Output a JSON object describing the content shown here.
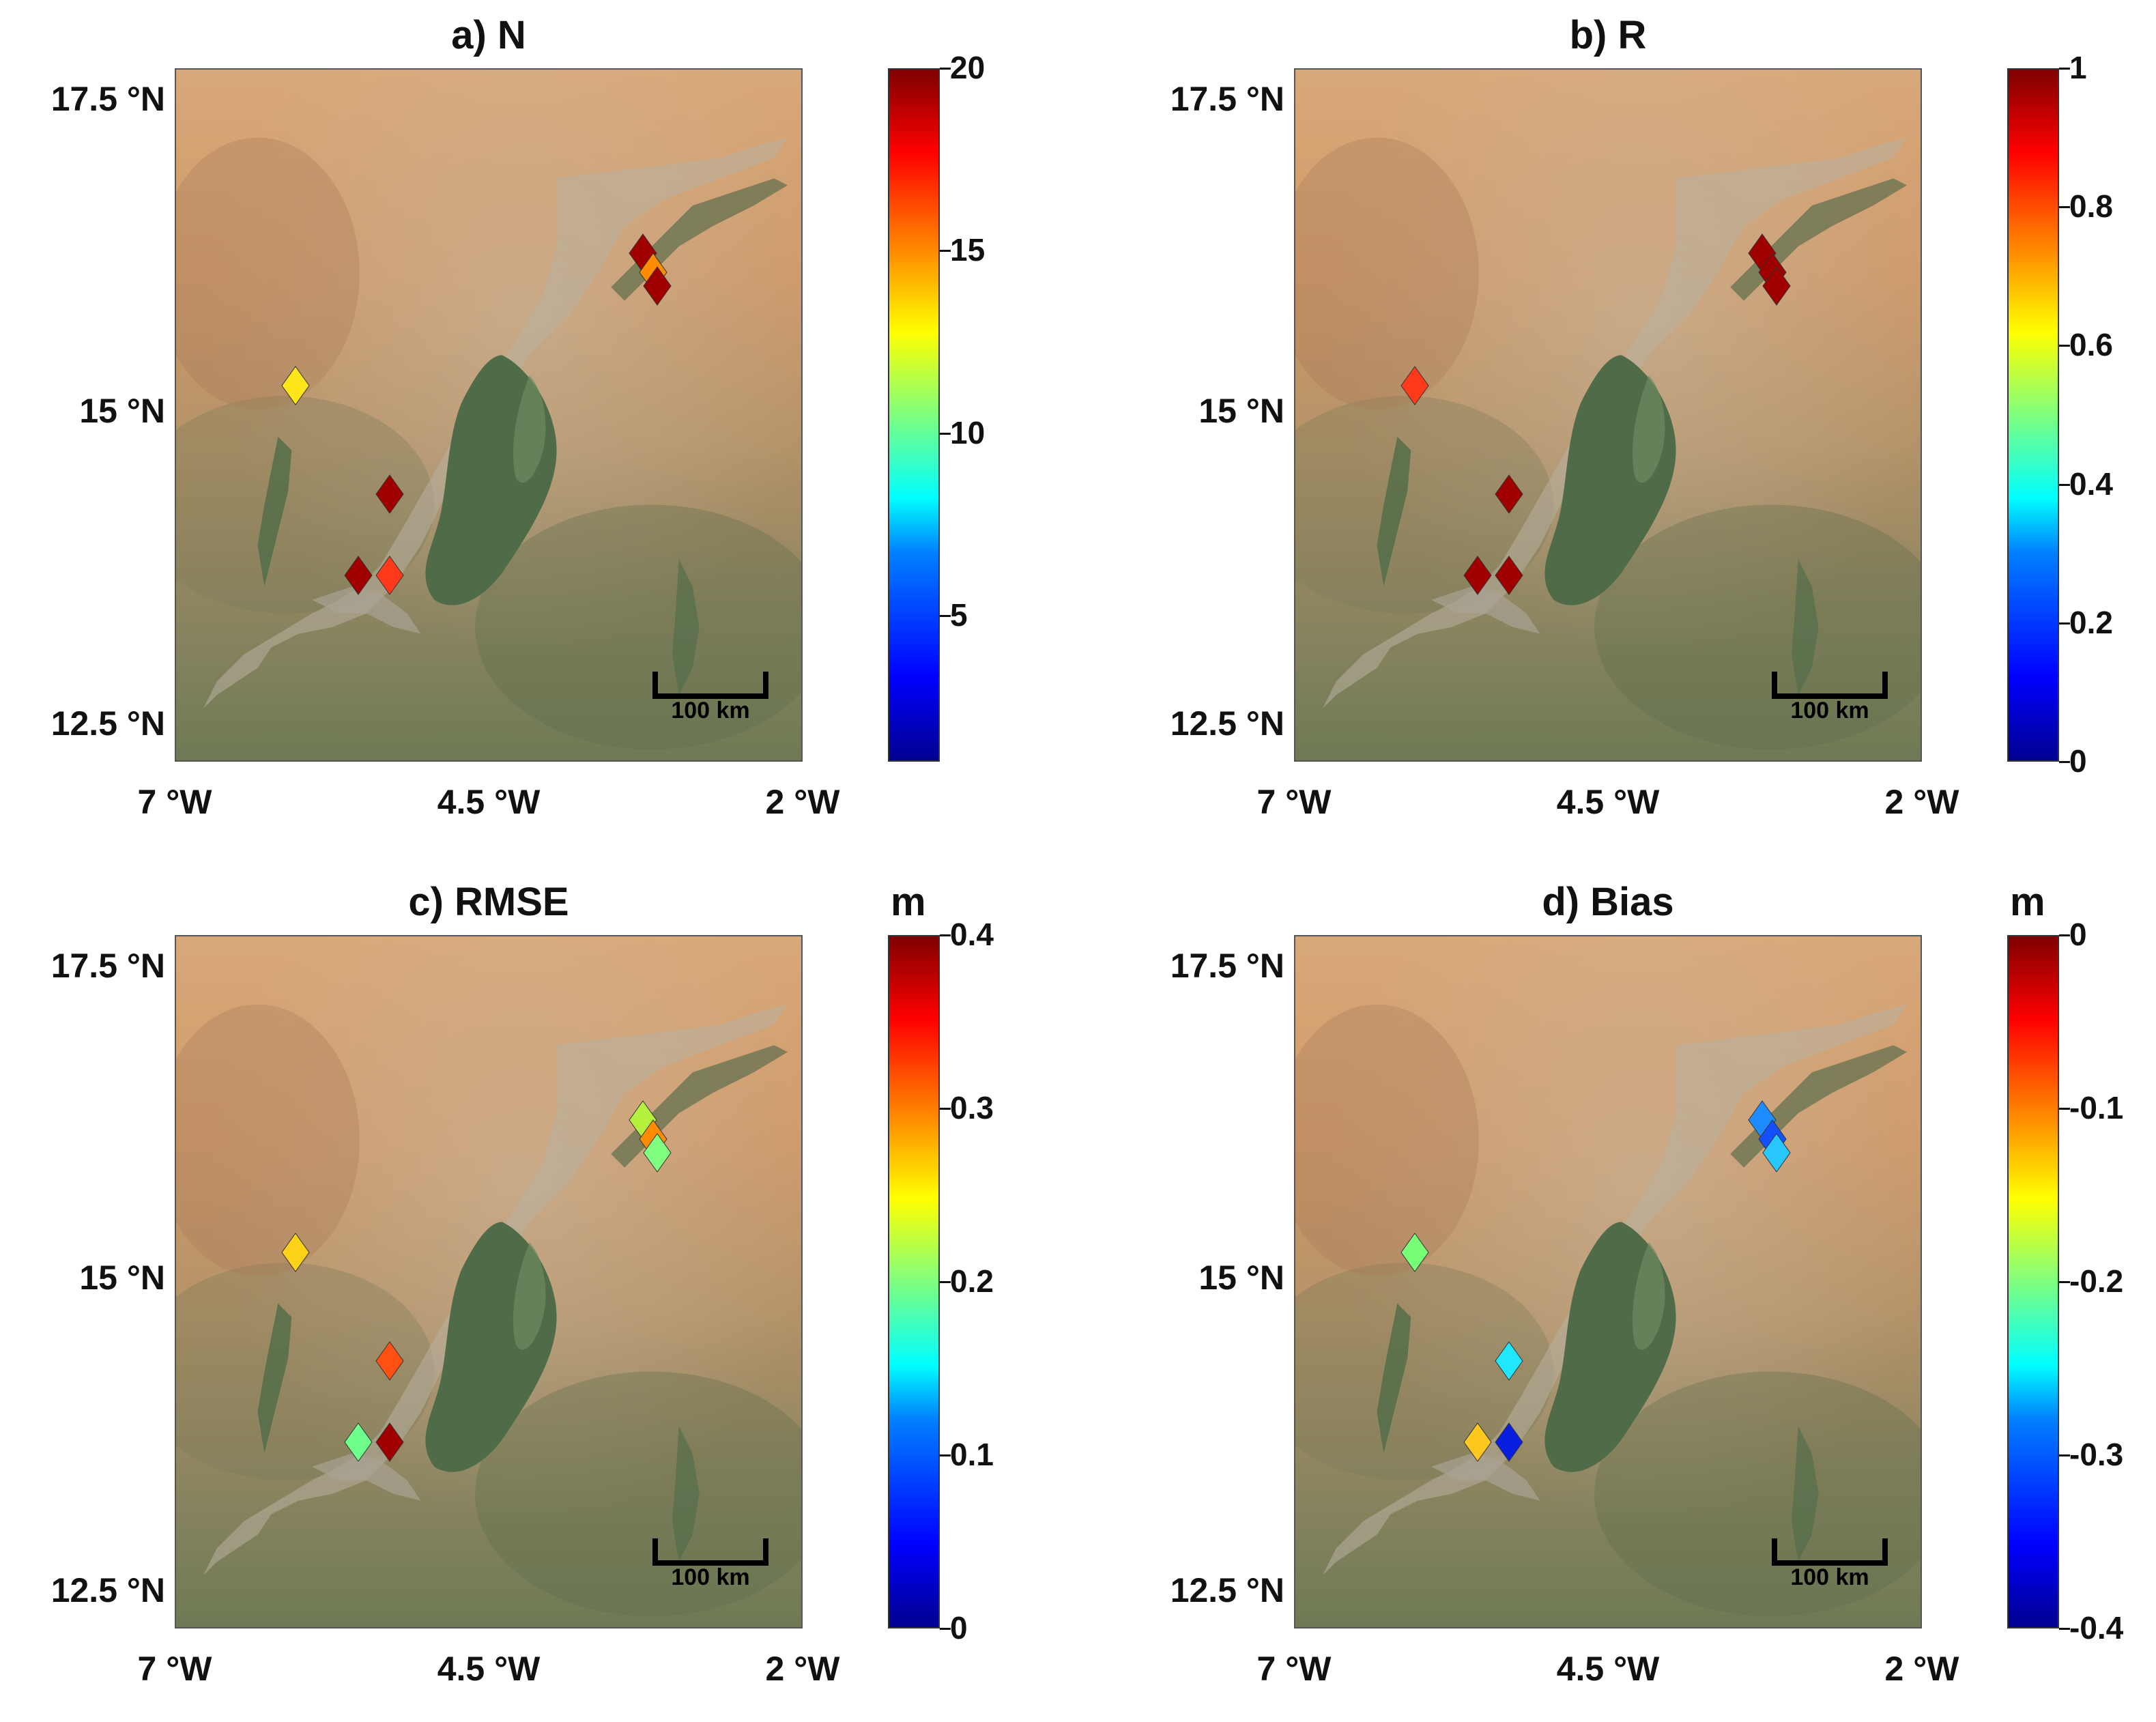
{
  "lat_labels": [
    "17.5 °N",
    "15 °N",
    "12.5 °N"
  ],
  "lon_labels": [
    "7 °W",
    "4.5 °W",
    "2 °W"
  ],
  "scale_bar_label": "100 km",
  "colormap": "jet",
  "panels": [
    {
      "title": "a) N",
      "unit": "",
      "colorbar_ticks": [
        "20",
        "15",
        "10",
        "5"
      ],
      "colorbar_range": [
        1,
        20
      ],
      "stations": [
        {
          "lon": -3.28,
          "lat": 16.28,
          "color": "#a00000"
        },
        {
          "lon": -3.2,
          "lat": 16.13,
          "color": "#ff8c00"
        },
        {
          "lon": -3.17,
          "lat": 16.02,
          "color": "#a00000"
        },
        {
          "lon": -6.05,
          "lat": 15.22,
          "color": "#ffe61a"
        },
        {
          "lon": -5.3,
          "lat": 14.35,
          "color": "#a00000"
        },
        {
          "lon": -5.55,
          "lat": 13.7,
          "color": "#a00000"
        },
        {
          "lon": -5.3,
          "lat": 13.7,
          "color": "#ff3a1a"
        }
      ]
    },
    {
      "title": "b) R",
      "unit": "",
      "colorbar_ticks": [
        "1",
        "0.8",
        "0.6",
        "0.4",
        "0.2",
        "0"
      ],
      "colorbar_range": [
        0,
        1
      ],
      "stations": [
        {
          "lon": -3.28,
          "lat": 16.28,
          "color": "#a00000"
        },
        {
          "lon": -3.2,
          "lat": 16.13,
          "color": "#a00000"
        },
        {
          "lon": -3.17,
          "lat": 16.02,
          "color": "#a00000"
        },
        {
          "lon": -6.05,
          "lat": 15.22,
          "color": "#ff3a1a"
        },
        {
          "lon": -5.3,
          "lat": 14.35,
          "color": "#a00000"
        },
        {
          "lon": -5.55,
          "lat": 13.7,
          "color": "#a00000"
        },
        {
          "lon": -5.3,
          "lat": 13.7,
          "color": "#a00000"
        }
      ]
    },
    {
      "title": "c) RMSE",
      "unit": "m",
      "colorbar_ticks": [
        "0.4",
        "0.3",
        "0.2",
        "0.1",
        "0"
      ],
      "colorbar_range": [
        0,
        0.4
      ],
      "stations": [
        {
          "lon": -3.28,
          "lat": 16.28,
          "color": "#b4f03c"
        },
        {
          "lon": -3.2,
          "lat": 16.13,
          "color": "#ff8c00"
        },
        {
          "lon": -3.17,
          "lat": 16.02,
          "color": "#80ff80"
        },
        {
          "lon": -6.05,
          "lat": 15.22,
          "color": "#ffd21a"
        },
        {
          "lon": -5.3,
          "lat": 14.35,
          "color": "#ff5014"
        },
        {
          "lon": -5.55,
          "lat": 13.7,
          "color": "#6fff8c"
        },
        {
          "lon": -5.3,
          "lat": 13.7,
          "color": "#a00000"
        }
      ]
    },
    {
      "title": "d) Bias",
      "unit": "m",
      "colorbar_ticks": [
        "0",
        "-0.1",
        "-0.2",
        "-0.3",
        "-0.4"
      ],
      "colorbar_range": [
        -0.4,
        0
      ],
      "stations": [
        {
          "lon": -3.28,
          "lat": 16.28,
          "color": "#1e8cff"
        },
        {
          "lon": -3.2,
          "lat": 16.13,
          "color": "#1450ff"
        },
        {
          "lon": -3.17,
          "lat": 16.02,
          "color": "#28c8ff"
        },
        {
          "lon": -6.05,
          "lat": 15.22,
          "color": "#78ff78"
        },
        {
          "lon": -5.3,
          "lat": 14.35,
          "color": "#20e6ff"
        },
        {
          "lon": -5.55,
          "lat": 13.7,
          "color": "#ffc81e"
        },
        {
          "lon": -5.3,
          "lat": 13.7,
          "color": "#0a1ee0"
        }
      ]
    }
  ]
}
